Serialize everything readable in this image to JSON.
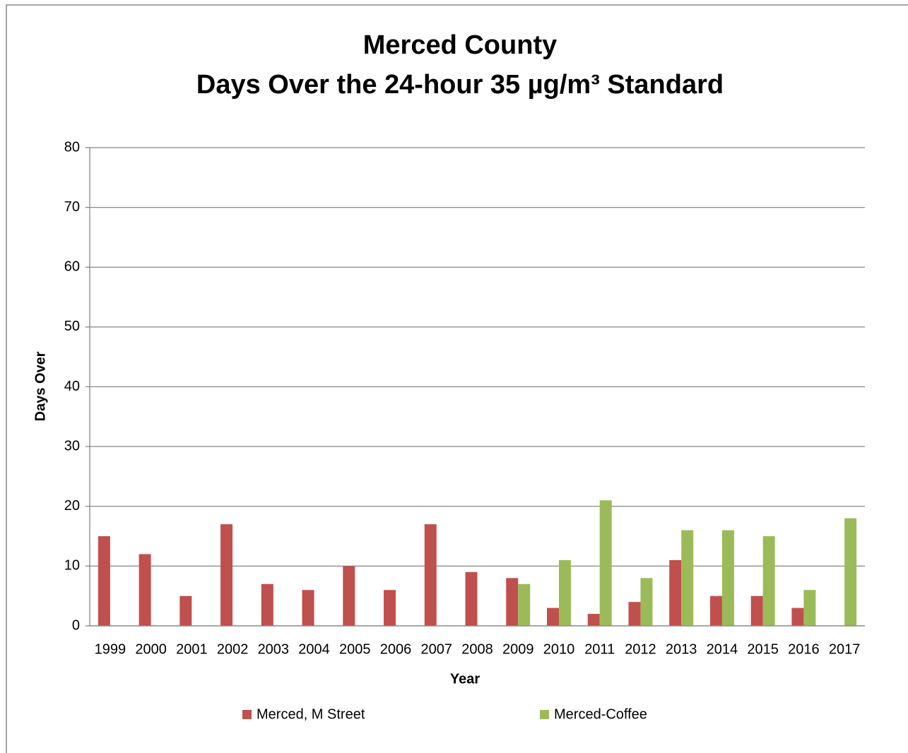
{
  "chart_data": {
    "type": "bar",
    "title": [
      "Merced County",
      "Days Over the 24-hour 35 µg/m³ Standard"
    ],
    "x_label": "Year",
    "y_label": "Days Over",
    "categories": [
      "1999",
      "2000",
      "2001",
      "2002",
      "2003",
      "2004",
      "2005",
      "2006",
      "2007",
      "2008",
      "2009",
      "2010",
      "2011",
      "2012",
      "2013",
      "2014",
      "2015",
      "2016",
      "2017"
    ],
    "series": [
      {
        "name": "Merced, M Street",
        "color": "#c0504d",
        "values": [
          15,
          12,
          5,
          17,
          7,
          6,
          10,
          6,
          17,
          9,
          8,
          3,
          2,
          4,
          11,
          5,
          5,
          3,
          null
        ]
      },
      {
        "name": "Merced-Coffee",
        "color": "#9bbb59",
        "values": [
          null,
          null,
          null,
          null,
          null,
          null,
          null,
          null,
          null,
          null,
          7,
          11,
          21,
          8,
          16,
          16,
          15,
          6,
          18
        ]
      }
    ],
    "ylim": [
      0,
      80
    ],
    "yticks": [
      0,
      10,
      20,
      30,
      40,
      50,
      60,
      70,
      80
    ],
    "grid": true,
    "legend": "bottom"
  }
}
